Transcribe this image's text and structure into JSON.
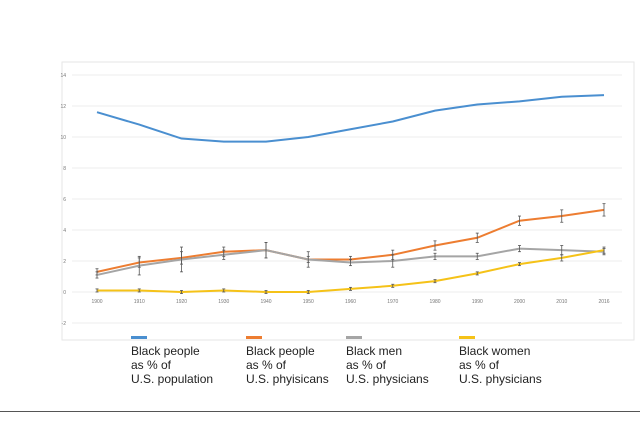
{
  "chart_data": {
    "type": "line",
    "title": "",
    "xlabel": "",
    "ylabel": "",
    "categories": [
      "1900",
      "1910",
      "1920",
      "1930",
      "1940",
      "1950",
      "1960",
      "1970",
      "1980",
      "1990",
      "2000",
      "2010",
      "2016"
    ],
    "yticks": [
      "14",
      "12",
      "10",
      "8",
      "6",
      "4",
      "2",
      "0",
      "-2"
    ],
    "ylim": [
      -2,
      14
    ],
    "grid": true,
    "legend_position": "bottom",
    "series": [
      {
        "name": "Black people as % of U.S. population",
        "color": "#4a8fd0",
        "values": [
          11.6,
          10.8,
          9.9,
          9.7,
          9.7,
          10.0,
          10.5,
          11.0,
          11.7,
          12.1,
          12.3,
          12.6,
          12.7
        ]
      },
      {
        "name": "Black people as % of U.S. phyisicans",
        "color": "#ed7d31",
        "values": [
          1.3,
          1.9,
          2.2,
          2.6,
          2.7,
          2.1,
          2.1,
          2.4,
          3.0,
          3.5,
          4.6,
          4.9,
          5.3
        ],
        "error": [
          0.2,
          0.3,
          0.4,
          0.3,
          0.5,
          0.2,
          0.2,
          0.3,
          0.3,
          0.3,
          0.3,
          0.4,
          0.4
        ]
      },
      {
        "name": "Black men as % of U.S. physicians",
        "color": "#a5a5a5",
        "values": [
          1.1,
          1.7,
          2.1,
          2.4,
          2.7,
          2.1,
          1.9,
          2.0,
          2.3,
          2.3,
          2.8,
          2.7,
          2.6
        ],
        "error": [
          0.2,
          0.6,
          0.8,
          0.3,
          0.5,
          0.5,
          0.2,
          0.4,
          0.2,
          0.2,
          0.2,
          0.3,
          0.2
        ]
      },
      {
        "name": "Black women as % of U.S. physicians",
        "color": "#f5c218",
        "values": [
          0.1,
          0.1,
          0.0,
          0.1,
          0.0,
          0.0,
          0.2,
          0.4,
          0.7,
          1.2,
          1.8,
          2.2,
          2.7
        ],
        "error": [
          0.1,
          0.1,
          0.1,
          0.1,
          0.1,
          0.1,
          0.1,
          0.1,
          0.1,
          0.1,
          0.1,
          0.2,
          0.2
        ]
      }
    ]
  },
  "legend": [
    {
      "lines": [
        "Black people",
        "as % of",
        "U.S. population"
      ]
    },
    {
      "lines": [
        "Black people",
        "as % of",
        "U.S. phyisicans"
      ]
    },
    {
      "lines": [
        "Black men",
        "as % of",
        "U.S. physicians"
      ]
    },
    {
      "lines": [
        "Black women",
        "as % of",
        "U.S. physicians"
      ]
    }
  ]
}
